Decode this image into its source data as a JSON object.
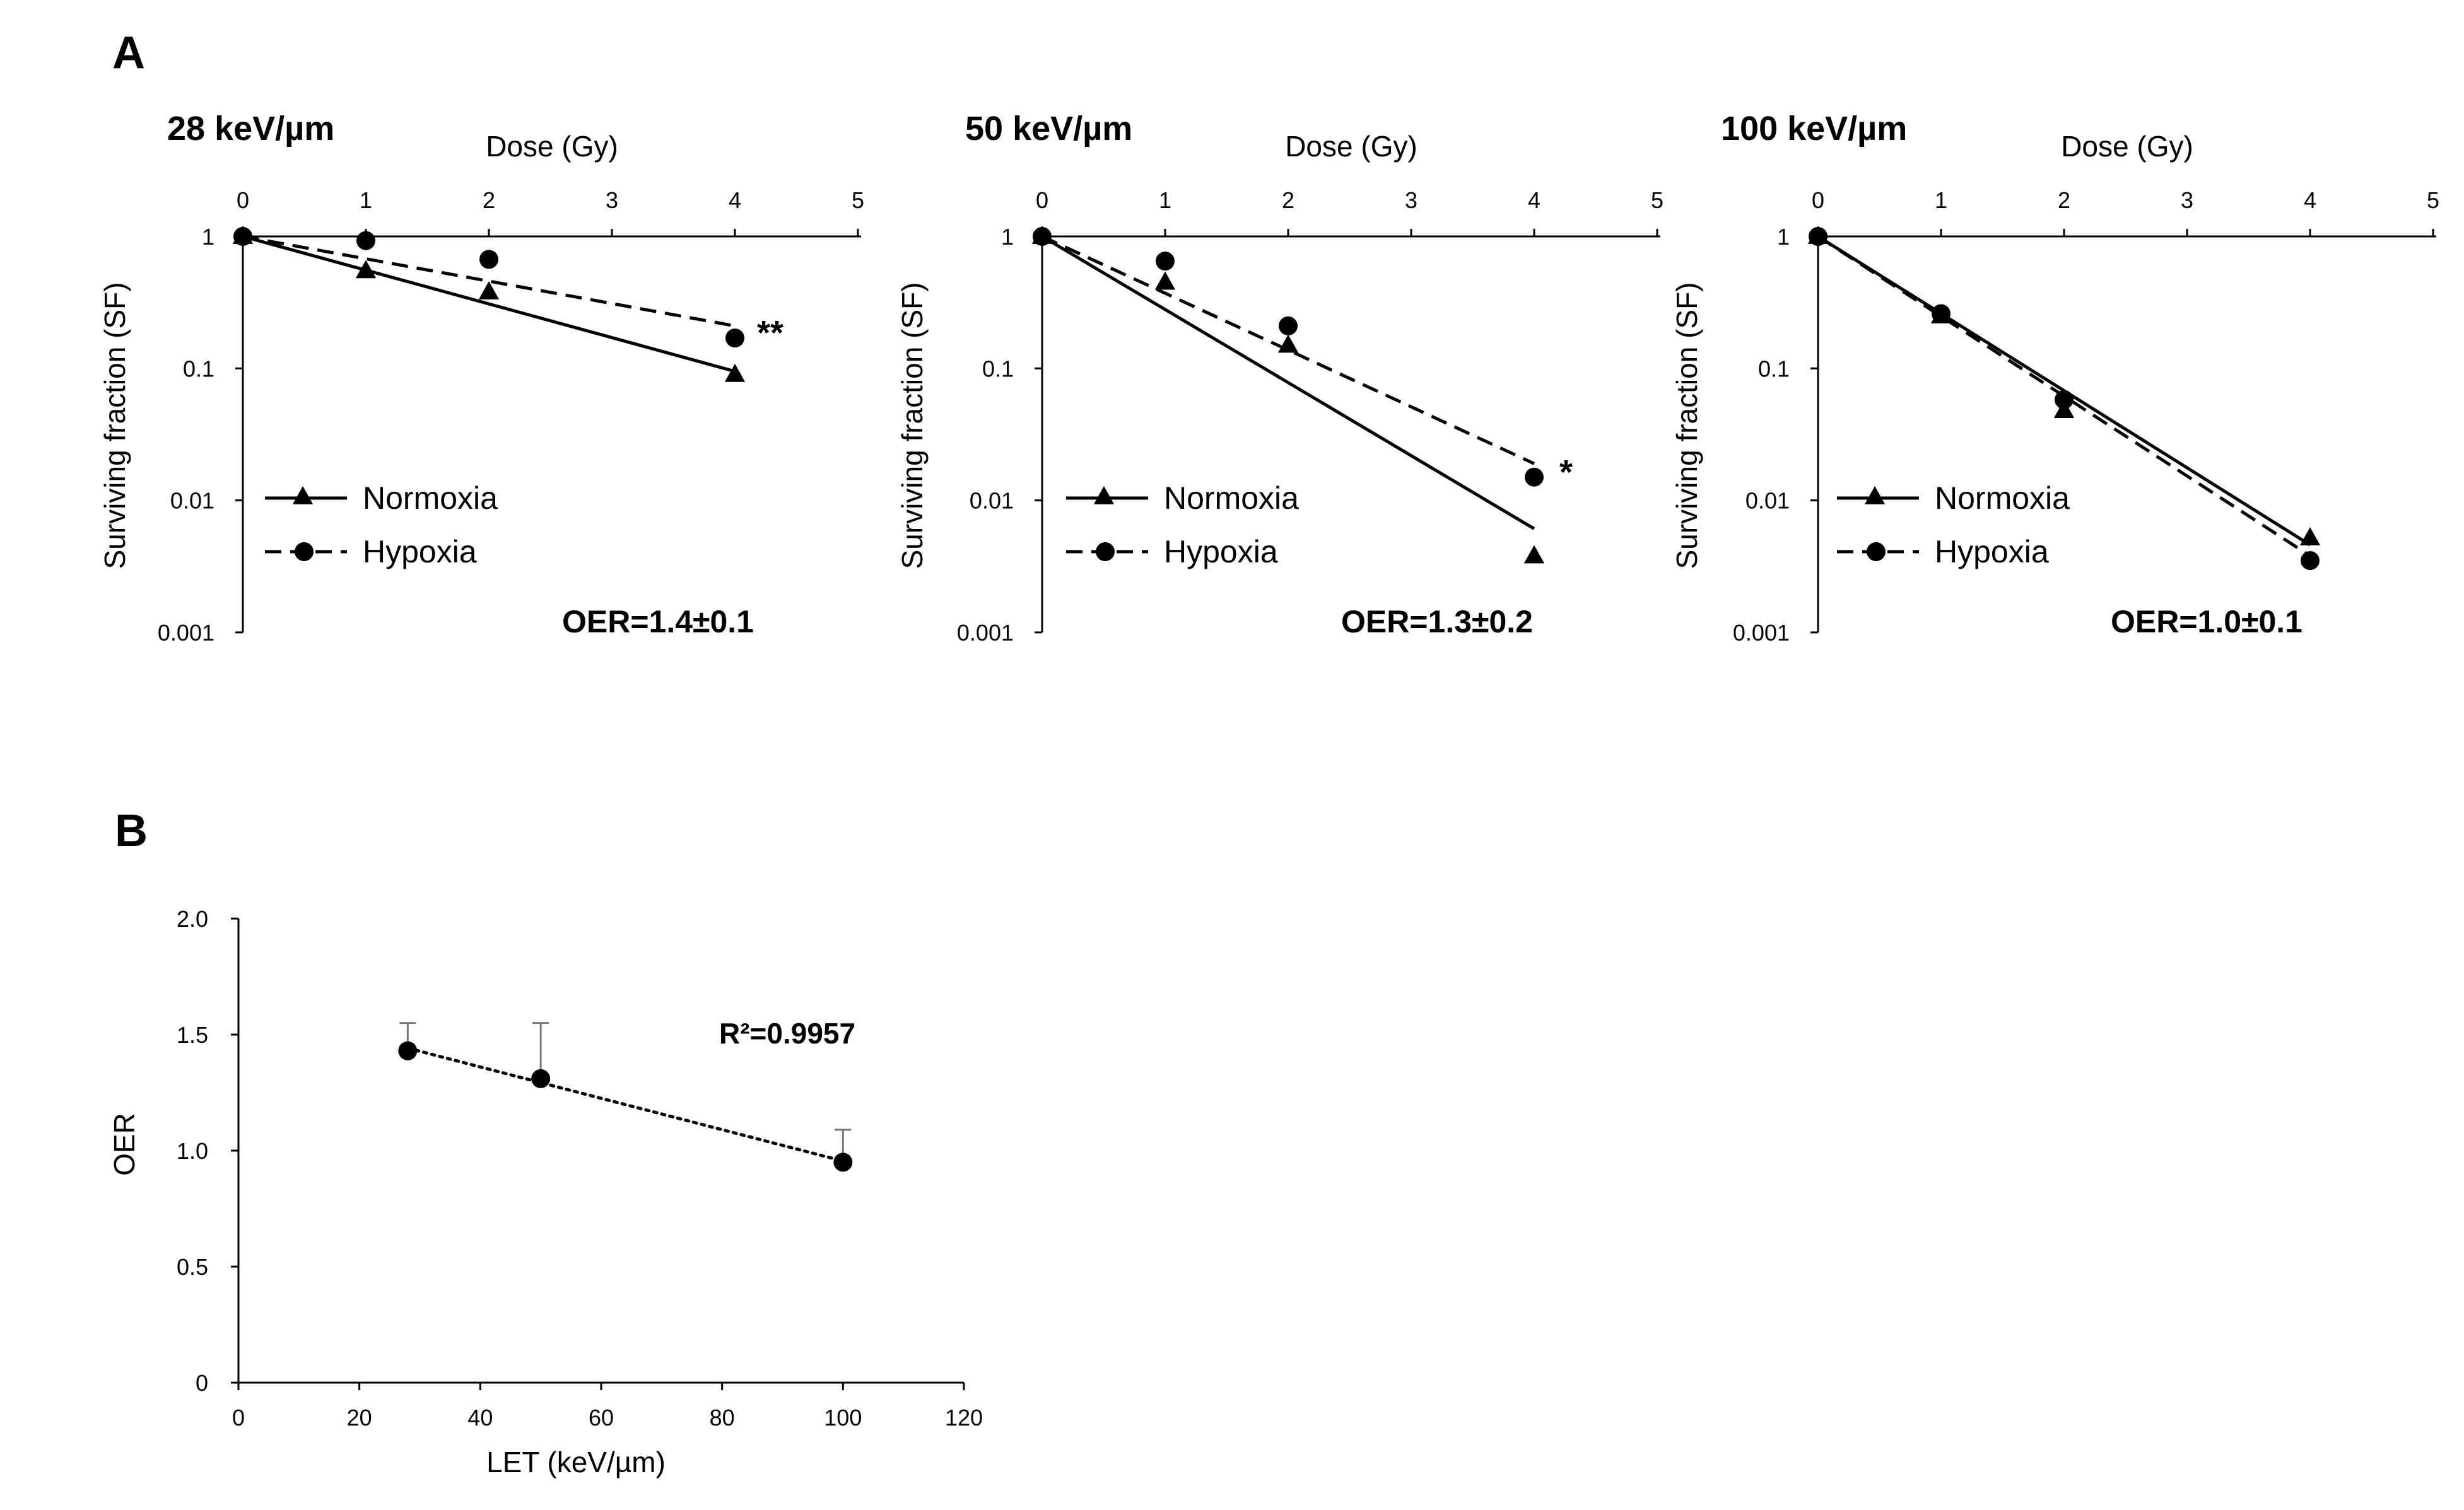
{
  "figure": {
    "panel_a_label": "A",
    "panel_b_label": "B"
  },
  "chart_data": [
    {
      "type": "scatter",
      "title": "28 keV/µm",
      "xlabel": "Dose (Gy)",
      "ylabel": "Surviving fraction (SF)",
      "xlim": [
        0,
        5
      ],
      "ylim": [
        0.001,
        1
      ],
      "yscale": "log",
      "x_ticks": [
        "0",
        "1",
        "2",
        "3",
        "4",
        "5"
      ],
      "y_ticks": [
        "1",
        "0.1",
        "0.01",
        "0.001"
      ],
      "x_axis_position": "top",
      "series": [
        {
          "name": "Normoxia",
          "marker": "triangle",
          "line": "solid",
          "x": [
            0,
            1,
            2,
            4
          ],
          "y": [
            1.0,
            0.55,
            0.38,
            0.09
          ],
          "fit": {
            "x": [
              0,
              4
            ],
            "y": [
              1.0,
              0.095
            ]
          }
        },
        {
          "name": "Hypoxia",
          "marker": "circle",
          "line": "dashed",
          "x": [
            0,
            1,
            2,
            4
          ],
          "y": [
            1.0,
            0.93,
            0.67,
            0.17
          ],
          "fit": {
            "x": [
              0,
              4
            ],
            "y": [
              1.0,
              0.21
            ]
          }
        }
      ],
      "significance": "**",
      "annotation": "OER=1.4±0.1"
    },
    {
      "type": "scatter",
      "title": "50 keV/µm",
      "xlabel": "Dose (Gy)",
      "ylabel": "Surviving fraction (SF)",
      "xlim": [
        0,
        5
      ],
      "ylim": [
        0.001,
        1
      ],
      "yscale": "log",
      "x_ticks": [
        "0",
        "1",
        "2",
        "3",
        "4",
        "5"
      ],
      "y_ticks": [
        "1",
        "0.1",
        "0.01",
        "0.001"
      ],
      "x_axis_position": "top",
      "series": [
        {
          "name": "Normoxia",
          "marker": "triangle",
          "line": "solid",
          "x": [
            0,
            1,
            2,
            4
          ],
          "y": [
            1.0,
            0.45,
            0.15,
            0.0038
          ],
          "fit": {
            "x": [
              0,
              4
            ],
            "y": [
              1.0,
              0.0061
            ]
          }
        },
        {
          "name": "Hypoxia",
          "marker": "circle",
          "line": "dashed",
          "x": [
            0,
            1,
            2,
            4
          ],
          "y": [
            1.0,
            0.65,
            0.21,
            0.015
          ],
          "fit": {
            "x": [
              0,
              4
            ],
            "y": [
              1.0,
              0.019
            ]
          }
        }
      ],
      "significance": "*",
      "annotation": "OER=1.3±0.2"
    },
    {
      "type": "scatter",
      "title": "100 keV/µm",
      "xlabel": "Dose (Gy)",
      "ylabel": "Surviving fraction (SF)",
      "xlim": [
        0,
        5
      ],
      "ylim": [
        0.001,
        1
      ],
      "yscale": "log",
      "x_ticks": [
        "0",
        "1",
        "2",
        "3",
        "4",
        "5"
      ],
      "y_ticks": [
        "1",
        "0.1",
        "0.01",
        "0.001"
      ],
      "x_axis_position": "top",
      "series": [
        {
          "name": "Normoxia",
          "marker": "triangle",
          "line": "solid",
          "x": [
            0,
            1,
            2,
            4
          ],
          "y": [
            1.0,
            0.25,
            0.048,
            0.0052
          ],
          "fit": {
            "x": [
              0,
              4
            ],
            "y": [
              1.0,
              0.0046
            ]
          }
        },
        {
          "name": "Hypoxia",
          "marker": "circle",
          "line": "dashed",
          "x": [
            0,
            1,
            2,
            4
          ],
          "y": [
            1.0,
            0.26,
            0.058,
            0.0035
          ],
          "fit": {
            "x": [
              0,
              4
            ],
            "y": [
              1.0,
              0.0038
            ]
          }
        }
      ],
      "significance": "",
      "annotation": "OER=1.0±0.1"
    },
    {
      "type": "scatter",
      "xlabel": "LET (keV/µm)",
      "ylabel": "OER",
      "xlim": [
        0,
        120
      ],
      "ylim": [
        0,
        2.0
      ],
      "x_ticks": [
        "0",
        "20",
        "40",
        "60",
        "80",
        "100",
        "120"
      ],
      "y_ticks": [
        "2.0",
        "1.5",
        "1.0",
        "0.5",
        "0"
      ],
      "series": [
        {
          "marker": "circle",
          "x": [
            28,
            50,
            100
          ],
          "y": [
            1.43,
            1.31,
            0.95
          ],
          "error_upper": [
            0.12,
            0.24,
            0.14
          ],
          "trendline": "linear-dotted"
        }
      ],
      "annotation": "R²=0.9957"
    }
  ]
}
